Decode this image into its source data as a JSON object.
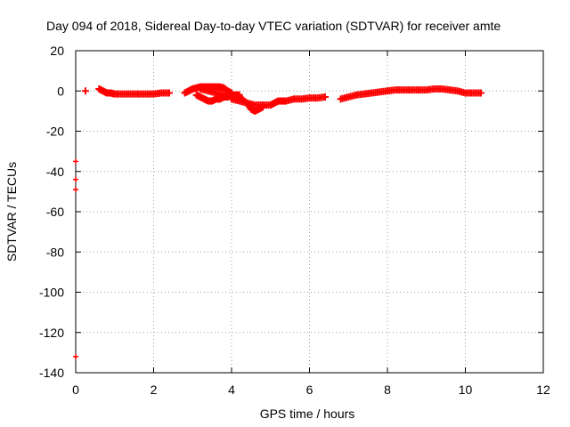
{
  "chart_data": {
    "type": "scatter",
    "title": "Day 094 of 2018, Sidereal Day-to-day VTEC variation (SDTVAR) for receiver amte",
    "xlabel": "GPS time / hours",
    "ylabel": "SDTVAR / TECUs",
    "xlim": [
      0,
      12
    ],
    "ylim": [
      -140,
      20
    ],
    "xticks": [
      0,
      2,
      4,
      6,
      8,
      10,
      12
    ],
    "yticks": [
      20,
      0,
      -20,
      -40,
      -60,
      -80,
      -100,
      -120,
      -140
    ],
    "grid": true,
    "marker": "plus",
    "series_color": "#ff0000",
    "outliers": [
      {
        "x": 0.0,
        "y": -35
      },
      {
        "x": 0.0,
        "y": -44
      },
      {
        "x": 0.0,
        "y": -49
      },
      {
        "x": 0.0,
        "y": -132
      }
    ],
    "series": [
      {
        "name": "SDTVAR",
        "x": [
          0.25,
          0.6,
          0.7,
          0.8,
          0.9,
          1.0,
          1.2,
          1.4,
          1.6,
          1.8,
          2.0,
          2.2,
          2.4,
          2.8,
          2.9,
          3.0,
          3.1,
          3.2,
          3.3,
          3.4,
          3.5,
          3.6,
          3.7,
          3.8,
          3.9,
          4.0,
          3.1,
          3.2,
          3.3,
          3.4,
          3.5,
          3.6,
          3.7,
          3.8,
          3.9,
          4.0,
          4.1,
          4.2,
          3.2,
          3.4,
          3.6,
          3.8,
          4.0,
          4.2,
          4.4,
          4.5,
          4.6,
          4.7,
          4.8,
          4.0,
          4.2,
          4.4,
          4.6,
          4.8,
          5.0,
          5.1,
          5.2,
          5.3,
          5.4,
          5.6,
          5.8,
          6.0,
          6.2,
          6.4,
          6.8,
          7.0,
          7.2,
          7.4,
          7.6,
          7.8,
          8.0,
          8.2,
          8.4,
          8.6,
          8.8,
          9.0,
          9.2,
          9.4,
          9.6,
          9.8,
          10.0,
          10.2,
          10.4
        ],
        "y": [
          0,
          1,
          0,
          -1,
          -1,
          -1.5,
          -1.5,
          -1.5,
          -1.5,
          -1.5,
          -1.5,
          -1,
          -1,
          -1,
          0,
          1,
          1.5,
          2,
          2,
          2,
          2,
          2,
          2,
          1.5,
          0,
          -1,
          -2,
          -3,
          -4,
          -5,
          -5,
          -4,
          -4,
          -3,
          -3,
          -2,
          -2,
          -2,
          1,
          0,
          -1,
          -2,
          -3,
          -3,
          -6,
          -9,
          -10,
          -9,
          -8,
          -4,
          -5,
          -6,
          -7,
          -7,
          -7,
          -6,
          -5,
          -5,
          -5,
          -4,
          -4,
          -3.5,
          -3.5,
          -3,
          -4,
          -3,
          -2,
          -1.5,
          -1,
          -0.5,
          0,
          0.5,
          0.5,
          0.5,
          0.5,
          0.5,
          1,
          1,
          0.5,
          0,
          -1,
          -1,
          -1
        ]
      }
    ]
  }
}
